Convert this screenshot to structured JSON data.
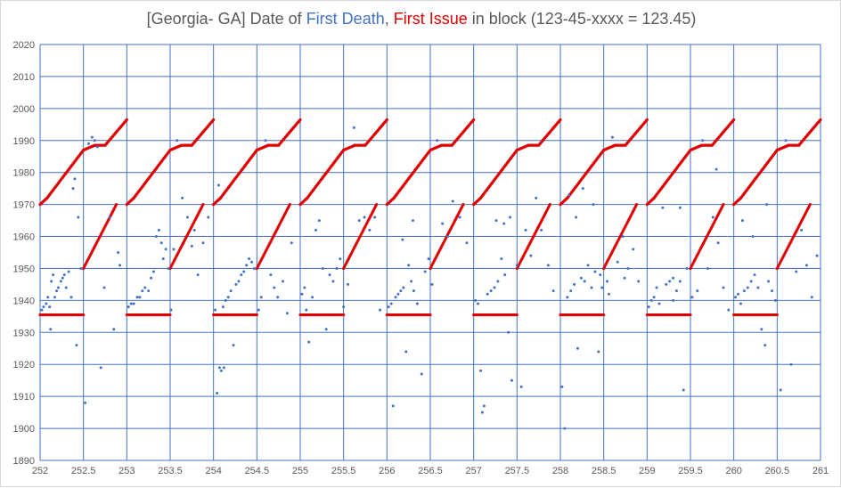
{
  "chart_data": {
    "type": "scatter",
    "title_parts": [
      {
        "text": "[Georgia- GA] Date of ",
        "color": "#595959"
      },
      {
        "text": "First Death",
        "color": "#4472c4"
      },
      {
        "text": ", ",
        "color": "#595959"
      },
      {
        "text": "First Issue",
        "color": "#e00000"
      },
      {
        "text": " in block (123-45-xxxx = 123.45)",
        "color": "#595959"
      }
    ],
    "xlabel": "",
    "ylabel": "",
    "xlim": [
      252,
      261
    ],
    "ylim": [
      1890,
      2020
    ],
    "x_ticks": [
      252,
      252.5,
      253,
      253.5,
      254,
      254.5,
      255,
      255.5,
      256,
      256.5,
      257,
      257.5,
      258,
      258.5,
      259,
      259.5,
      260,
      260.5,
      261
    ],
    "x_tick_labels": [
      "252",
      "252.5",
      "253",
      "253.5",
      "254",
      "254.5",
      "255",
      "255.5",
      "256",
      "256.5",
      "257",
      "257.5",
      "258",
      "258.5",
      "259",
      "259.5",
      "260",
      "260.5",
      "261"
    ],
    "y_ticks": [
      1890,
      1900,
      1910,
      1920,
      1930,
      1940,
      1950,
      1960,
      1970,
      1980,
      1990,
      2000,
      2010,
      2020
    ],
    "y_tick_labels": [
      "1890",
      "1900",
      "1910",
      "1920",
      "1930",
      "1940",
      "1950",
      "1960",
      "1970",
      "1980",
      "1990",
      "2000",
      "2010",
      "2020"
    ],
    "grid": true,
    "legend": "none",
    "colors": {
      "first_death": "#4472c4",
      "first_issue": "#e00000",
      "grid": "#4472c4",
      "text": "#595959"
    },
    "series": [
      {
        "name": "First Issue",
        "color": "#e00000",
        "cycle_period": 1,
        "cycle_starts": [
          252,
          253,
          254,
          255,
          256,
          257,
          258,
          259,
          260
        ],
        "segments": [
          {
            "x0": 0.0,
            "x1": 0.5,
            "y0": 1935.5,
            "y1": 1935.5
          },
          {
            "x0": 0.5,
            "x1": 0.88,
            "y0": 1950.0,
            "y1": 1970.0
          },
          {
            "x0": 0.0,
            "x1": 0.08,
            "y0": 1970.0,
            "y1": 1972.0
          },
          {
            "x0": 0.08,
            "x1": 0.5,
            "y0": 1972.0,
            "y1": 1987.0
          },
          {
            "x0": 0.5,
            "x1": 0.63,
            "y0": 1987.0,
            "y1": 1988.5
          },
          {
            "x0": 0.63,
            "x1": 0.75,
            "y0": 1988.5,
            "y1": 1988.5
          },
          {
            "x0": 0.75,
            "x1": 1.0,
            "y0": 1988.5,
            "y1": 1996.5
          }
        ],
        "point_spacing": 0.01
      },
      {
        "name": "First Death",
        "color": "#4472c4",
        "points": [
          [
            252.02,
            1937
          ],
          [
            252.04,
            1938
          ],
          [
            252.07,
            1939
          ],
          [
            252.09,
            1941
          ],
          [
            252.11,
            1938
          ],
          [
            252.13,
            1946
          ],
          [
            252.15,
            1948
          ],
          [
            252.17,
            1941
          ],
          [
            252.19,
            1943
          ],
          [
            252.21,
            1944
          ],
          [
            252.24,
            1946
          ],
          [
            252.26,
            1947
          ],
          [
            252.28,
            1948
          ],
          [
            252.3,
            1944
          ],
          [
            252.33,
            1949
          ],
          [
            252.36,
            1941
          ],
          [
            252.38,
            1975
          ],
          [
            252.4,
            1978
          ],
          [
            252.42,
            1926
          ],
          [
            252.44,
            1966
          ],
          [
            252.47,
            1950
          ],
          [
            252.12,
            1931
          ],
          [
            252.52,
            1908
          ],
          [
            252.56,
            1989
          ],
          [
            252.6,
            1991
          ],
          [
            252.63,
            1990
          ],
          [
            252.66,
            1988
          ],
          [
            252.7,
            1919
          ],
          [
            252.74,
            1944
          ],
          [
            252.8,
            1966
          ],
          [
            252.85,
            1931
          ],
          [
            252.9,
            1955
          ],
          [
            252.92,
            1951
          ],
          [
            253.02,
            1938
          ],
          [
            253.05,
            1939
          ],
          [
            253.08,
            1939
          ],
          [
            253.12,
            1941
          ],
          [
            253.15,
            1941
          ],
          [
            253.18,
            1943
          ],
          [
            253.21,
            1944
          ],
          [
            253.25,
            1943
          ],
          [
            253.28,
            1947
          ],
          [
            253.31,
            1949
          ],
          [
            253.34,
            1960
          ],
          [
            253.37,
            1962
          ],
          [
            253.4,
            1958
          ],
          [
            253.42,
            1953
          ],
          [
            253.45,
            1956
          ],
          [
            253.48,
            1950
          ],
          [
            253.51,
            1937
          ],
          [
            253.54,
            1956
          ],
          [
            253.58,
            1990
          ],
          [
            253.64,
            1972
          ],
          [
            253.7,
            1966
          ],
          [
            253.75,
            1957
          ],
          [
            253.78,
            1962
          ],
          [
            253.82,
            1948
          ],
          [
            253.88,
            1958
          ],
          [
            253.94,
            1966
          ],
          [
            254.02,
            1937
          ],
          [
            254.04,
            1911
          ],
          [
            254.07,
            1919
          ],
          [
            254.09,
            1918
          ],
          [
            254.11,
            1938
          ],
          [
            254.14,
            1940
          ],
          [
            254.17,
            1941
          ],
          [
            254.2,
            1943
          ],
          [
            254.23,
            1926
          ],
          [
            254.26,
            1945
          ],
          [
            254.29,
            1946
          ],
          [
            254.32,
            1948
          ],
          [
            254.35,
            1949
          ],
          [
            254.38,
            1951
          ],
          [
            254.41,
            1953
          ],
          [
            254.44,
            1952
          ],
          [
            254.47,
            1950
          ],
          [
            254.52,
            1937
          ],
          [
            254.55,
            1941
          ],
          [
            254.6,
            1990
          ],
          [
            254.66,
            1948
          ],
          [
            254.7,
            1944
          ],
          [
            254.74,
            1941
          ],
          [
            254.8,
            1946
          ],
          [
            254.85,
            1936
          ],
          [
            254.9,
            1958
          ],
          [
            254.06,
            1976
          ],
          [
            254.12,
            1919
          ],
          [
            255.02,
            1942
          ],
          [
            255.05,
            1944
          ],
          [
            255.07,
            1937
          ],
          [
            255.1,
            1927
          ],
          [
            255.14,
            1941
          ],
          [
            255.18,
            1962
          ],
          [
            255.22,
            1965
          ],
          [
            255.26,
            1950
          ],
          [
            255.3,
            1931
          ],
          [
            255.34,
            1948
          ],
          [
            255.38,
            1946
          ],
          [
            255.42,
            1950
          ],
          [
            255.46,
            1953
          ],
          [
            255.5,
            1938
          ],
          [
            255.55,
            1945
          ],
          [
            255.62,
            1994
          ],
          [
            255.68,
            1965
          ],
          [
            255.74,
            1966
          ],
          [
            255.8,
            1962
          ],
          [
            255.86,
            1966
          ],
          [
            255.92,
            1937
          ],
          [
            256.02,
            1938
          ],
          [
            256.05,
            1939
          ],
          [
            256.07,
            1907
          ],
          [
            256.1,
            1941
          ],
          [
            256.13,
            1942
          ],
          [
            256.16,
            1943
          ],
          [
            256.19,
            1944
          ],
          [
            256.22,
            1924
          ],
          [
            256.25,
            1951
          ],
          [
            256.28,
            1946
          ],
          [
            256.31,
            1943
          ],
          [
            256.35,
            1939
          ],
          [
            256.4,
            1917
          ],
          [
            256.44,
            1949
          ],
          [
            256.48,
            1953
          ],
          [
            256.52,
            1945
          ],
          [
            256.58,
            1990
          ],
          [
            256.64,
            1964
          ],
          [
            256.7,
            1960
          ],
          [
            256.76,
            1971
          ],
          [
            256.84,
            1966
          ],
          [
            256.92,
            1958
          ],
          [
            256.18,
            1959
          ],
          [
            256.3,
            1965
          ],
          [
            257.02,
            1940
          ],
          [
            257.05,
            1939
          ],
          [
            257.08,
            1918
          ],
          [
            257.1,
            1905
          ],
          [
            257.12,
            1907
          ],
          [
            257.16,
            1942
          ],
          [
            257.2,
            1943
          ],
          [
            257.24,
            1944
          ],
          [
            257.28,
            1946
          ],
          [
            257.32,
            1953
          ],
          [
            257.36,
            1948
          ],
          [
            257.4,
            1930
          ],
          [
            257.44,
            1915
          ],
          [
            257.5,
            1951
          ],
          [
            257.55,
            1913
          ],
          [
            257.6,
            1962
          ],
          [
            257.66,
            1954
          ],
          [
            257.72,
            1972
          ],
          [
            257.78,
            1962
          ],
          [
            257.86,
            1951
          ],
          [
            257.92,
            1943
          ],
          [
            257.35,
            1964
          ],
          [
            257.42,
            1966
          ],
          [
            257.26,
            1965
          ],
          [
            258.02,
            1913
          ],
          [
            258.05,
            1900
          ],
          [
            258.08,
            1941
          ],
          [
            258.12,
            1943
          ],
          [
            258.16,
            1945
          ],
          [
            258.2,
            1925
          ],
          [
            258.24,
            1947
          ],
          [
            258.28,
            1946
          ],
          [
            258.32,
            1951
          ],
          [
            258.36,
            1944
          ],
          [
            258.4,
            1949
          ],
          [
            258.44,
            1924
          ],
          [
            258.48,
            1944
          ],
          [
            258.54,
            1946
          ],
          [
            258.6,
            1991
          ],
          [
            258.66,
            1952
          ],
          [
            258.72,
            1960
          ],
          [
            258.78,
            1950
          ],
          [
            258.84,
            1956
          ],
          [
            258.9,
            1946
          ],
          [
            258.1,
            1973
          ],
          [
            258.18,
            1966
          ],
          [
            258.26,
            1975
          ],
          [
            258.38,
            1970
          ],
          [
            258.46,
            1948
          ],
          [
            258.56,
            1942
          ],
          [
            258.74,
            1947
          ],
          [
            259.02,
            1938
          ],
          [
            259.05,
            1940
          ],
          [
            259.08,
            1941
          ],
          [
            259.11,
            1944
          ],
          [
            259.14,
            1939
          ],
          [
            259.18,
            1969
          ],
          [
            259.22,
            1945
          ],
          [
            259.26,
            1946
          ],
          [
            259.3,
            1947
          ],
          [
            259.34,
            1943
          ],
          [
            259.38,
            1946
          ],
          [
            259.42,
            1912
          ],
          [
            259.46,
            1950
          ],
          [
            259.52,
            1941
          ],
          [
            259.58,
            1943
          ],
          [
            259.64,
            1990
          ],
          [
            259.7,
            1950
          ],
          [
            259.76,
            1966
          ],
          [
            259.82,
            1958
          ],
          [
            259.88,
            1944
          ],
          [
            259.94,
            1937
          ],
          [
            259.38,
            1969
          ],
          [
            259.3,
            1940
          ],
          [
            259.8,
            1981
          ],
          [
            260.02,
            1941
          ],
          [
            260.05,
            1942
          ],
          [
            260.08,
            1939
          ],
          [
            260.12,
            1943
          ],
          [
            260.16,
            1944
          ],
          [
            260.2,
            1946
          ],
          [
            260.24,
            1948
          ],
          [
            260.28,
            1944
          ],
          [
            260.32,
            1931
          ],
          [
            260.36,
            1926
          ],
          [
            260.4,
            1946
          ],
          [
            260.44,
            1943
          ],
          [
            260.48,
            1940
          ],
          [
            260.54,
            1912
          ],
          [
            260.6,
            1990
          ],
          [
            260.66,
            1920
          ],
          [
            260.72,
            1949
          ],
          [
            260.78,
            1962
          ],
          [
            260.84,
            1951
          ],
          [
            260.9,
            1941
          ],
          [
            260.96,
            1954
          ],
          [
            260.1,
            1965
          ],
          [
            260.22,
            1960
          ],
          [
            260.38,
            1970
          ]
        ]
      }
    ]
  }
}
